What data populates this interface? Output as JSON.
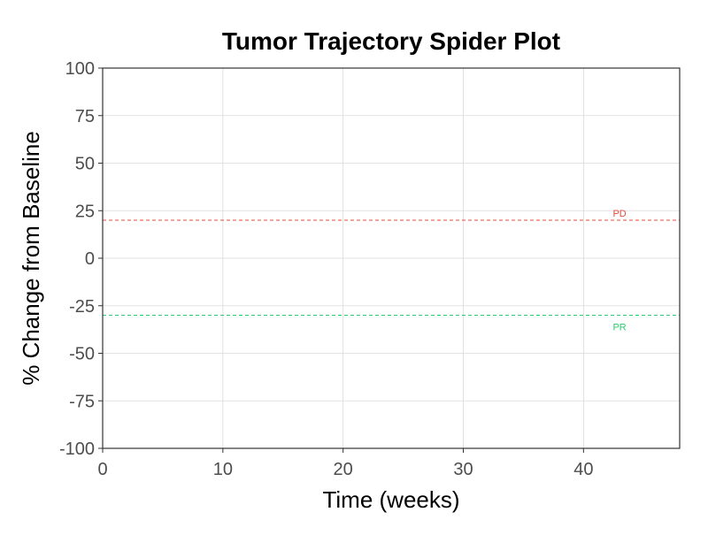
{
  "chart_data": {
    "type": "line",
    "title": "Tumor Trajectory Spider Plot",
    "xlabel": "Time (weeks)",
    "ylabel": "% Change from Baseline",
    "xlim": [
      0,
      48
    ],
    "ylim": [
      -100,
      100
    ],
    "x_ticks": [
      0,
      10,
      20,
      30,
      40
    ],
    "y_ticks": [
      -100,
      -75,
      -50,
      -25,
      0,
      25,
      50,
      75,
      100
    ],
    "grid": true,
    "series": [],
    "reference_lines": [
      {
        "label": "PD",
        "y": 20,
        "color": "#e74c3c",
        "style": "dashed"
      },
      {
        "label": "PR",
        "y": -30,
        "color": "#2ecc71",
        "style": "dashed"
      }
    ]
  }
}
